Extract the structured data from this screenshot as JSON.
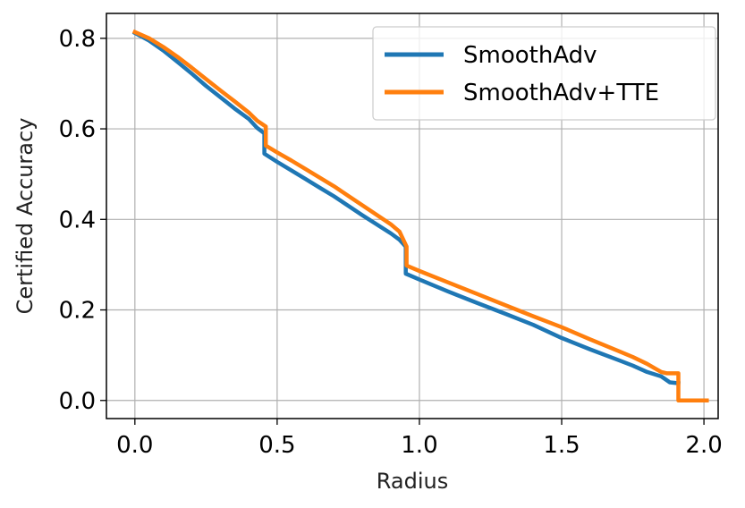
{
  "chart_data": {
    "type": "line",
    "xlabel": "Radius",
    "ylabel": "Certified Accuracy",
    "xlim": [
      -0.1,
      2.05
    ],
    "ylim": [
      -0.04,
      0.855
    ],
    "xticks": [
      0.0,
      0.5,
      1.0,
      1.5,
      2.0
    ],
    "xtick_labels": [
      "0.0",
      "0.5",
      "1.0",
      "1.5",
      "2.0"
    ],
    "yticks": [
      0.0,
      0.2,
      0.4,
      0.6,
      0.8
    ],
    "ytick_labels": [
      "0.0",
      "0.2",
      "0.4",
      "0.6",
      "0.8"
    ],
    "grid": true,
    "legend_position": "top-right",
    "series": [
      {
        "name": "SmoothAdv",
        "color": "#1f77b4",
        "points": [
          [
            0.0,
            0.812
          ],
          [
            0.05,
            0.795
          ],
          [
            0.1,
            0.773
          ],
          [
            0.15,
            0.748
          ],
          [
            0.2,
            0.722
          ],
          [
            0.25,
            0.695
          ],
          [
            0.3,
            0.67
          ],
          [
            0.35,
            0.645
          ],
          [
            0.4,
            0.622
          ],
          [
            0.43,
            0.602
          ],
          [
            0.455,
            0.59
          ],
          [
            0.455,
            0.545
          ],
          [
            0.5,
            0.527
          ],
          [
            0.55,
            0.508
          ],
          [
            0.6,
            0.489
          ],
          [
            0.65,
            0.47
          ],
          [
            0.7,
            0.451
          ],
          [
            0.75,
            0.43
          ],
          [
            0.8,
            0.409
          ],
          [
            0.85,
            0.389
          ],
          [
            0.9,
            0.369
          ],
          [
            0.93,
            0.355
          ],
          [
            0.952,
            0.34
          ],
          [
            0.952,
            0.28
          ],
          [
            1.0,
            0.267
          ],
          [
            1.1,
            0.241
          ],
          [
            1.2,
            0.216
          ],
          [
            1.3,
            0.192
          ],
          [
            1.4,
            0.167
          ],
          [
            1.5,
            0.138
          ],
          [
            1.6,
            0.113
          ],
          [
            1.7,
            0.089
          ],
          [
            1.75,
            0.077
          ],
          [
            1.8,
            0.063
          ],
          [
            1.85,
            0.053
          ],
          [
            1.88,
            0.04
          ],
          [
            1.91,
            0.038
          ]
        ]
      },
      {
        "name": "SmoothAdv+TTE",
        "color": "#ff7f0e",
        "points": [
          [
            0.0,
            0.814
          ],
          [
            0.05,
            0.8
          ],
          [
            0.1,
            0.781
          ],
          [
            0.15,
            0.759
          ],
          [
            0.2,
            0.735
          ],
          [
            0.25,
            0.71
          ],
          [
            0.3,
            0.685
          ],
          [
            0.35,
            0.661
          ],
          [
            0.4,
            0.636
          ],
          [
            0.43,
            0.618
          ],
          [
            0.46,
            0.605
          ],
          [
            0.46,
            0.563
          ],
          [
            0.5,
            0.548
          ],
          [
            0.55,
            0.53
          ],
          [
            0.6,
            0.511
          ],
          [
            0.65,
            0.492
          ],
          [
            0.7,
            0.473
          ],
          [
            0.75,
            0.452
          ],
          [
            0.8,
            0.431
          ],
          [
            0.85,
            0.41
          ],
          [
            0.9,
            0.389
          ],
          [
            0.93,
            0.373
          ],
          [
            0.955,
            0.34
          ],
          [
            0.955,
            0.298
          ],
          [
            1.0,
            0.286
          ],
          [
            1.1,
            0.261
          ],
          [
            1.2,
            0.236
          ],
          [
            1.3,
            0.211
          ],
          [
            1.4,
            0.186
          ],
          [
            1.5,
            0.162
          ],
          [
            1.6,
            0.135
          ],
          [
            1.7,
            0.109
          ],
          [
            1.75,
            0.096
          ],
          [
            1.8,
            0.081
          ],
          [
            1.83,
            0.07
          ],
          [
            1.85,
            0.063
          ],
          [
            1.87,
            0.06
          ],
          [
            1.91,
            0.06
          ],
          [
            1.91,
            0.0
          ],
          [
            2.01,
            0.0
          ]
        ]
      }
    ]
  }
}
